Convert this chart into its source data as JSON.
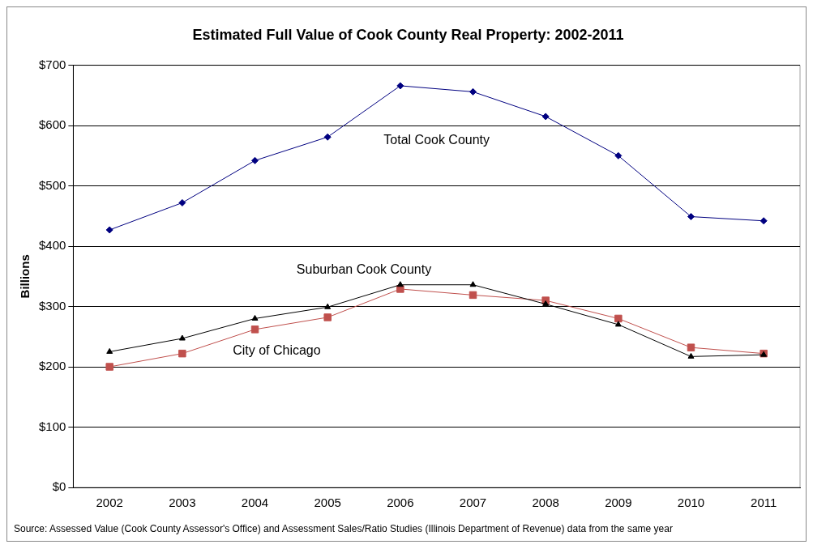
{
  "chart_data": {
    "type": "line",
    "title": "Estimated Full Value of Cook County Real Property: 2002-2011",
    "ylabel": "Billions",
    "categories": [
      "2002",
      "2003",
      "2004",
      "2005",
      "2006",
      "2007",
      "2008",
      "2009",
      "2010",
      "2011"
    ],
    "series": [
      {
        "name": "Total Cook County",
        "color": "#000080",
        "marker": "diamond",
        "values": [
          427,
          472,
          542,
          581,
          666,
          656,
          615,
          550,
          449,
          442
        ]
      },
      {
        "name": "Suburban Cook County",
        "color": "#000000",
        "marker": "triangle",
        "values": [
          225,
          247,
          280,
          299,
          336,
          336,
          304,
          270,
          217,
          220
        ]
      },
      {
        "name": "City of Chicago",
        "color": "#c0504d",
        "marker": "square",
        "values": [
          200,
          222,
          262,
          282,
          329,
          319,
          310,
          280,
          232,
          222
        ]
      }
    ],
    "ylim": [
      0,
      700
    ],
    "yticks": [
      {
        "value": 0,
        "label": "$0"
      },
      {
        "value": 100,
        "label": "$100"
      },
      {
        "value": 200,
        "label": "$200"
      },
      {
        "value": 300,
        "label": "$300"
      },
      {
        "value": 400,
        "label": "$400"
      },
      {
        "value": 500,
        "label": "$500"
      },
      {
        "value": 600,
        "label": "$600"
      },
      {
        "value": 700,
        "label": "$700"
      }
    ],
    "grid": "y",
    "legend": false,
    "line_style": "solid",
    "annotations": [
      "Source: Assessed Value (Cook County Assessor's Office) and Assessment Sales/Ratio Studies (Illinois Department of Revenue) data from the same year"
    ]
  }
}
